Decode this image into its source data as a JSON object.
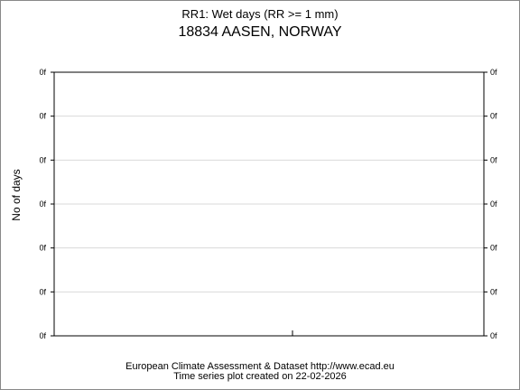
{
  "chart_data": {
    "type": "line",
    "title": "RR1: Wet days (RR >= 1 mm)",
    "subtitle": "18834 AASEN, NORWAY",
    "xlabel": "",
    "ylabel": "No of days",
    "y_tick_labels": [
      "0f",
      "0f",
      "0f",
      "0f",
      "0f",
      "0f",
      "0f"
    ],
    "series": [],
    "grid": true,
    "legend": "none"
  },
  "footer": {
    "source": "European Climate Assessment & Dataset  http://www.ecad.eu",
    "created": "Time series plot created on 22-02-2026"
  },
  "colors": {
    "grid": "#d9d9d9",
    "axis": "#000000",
    "frame": "#888888"
  }
}
